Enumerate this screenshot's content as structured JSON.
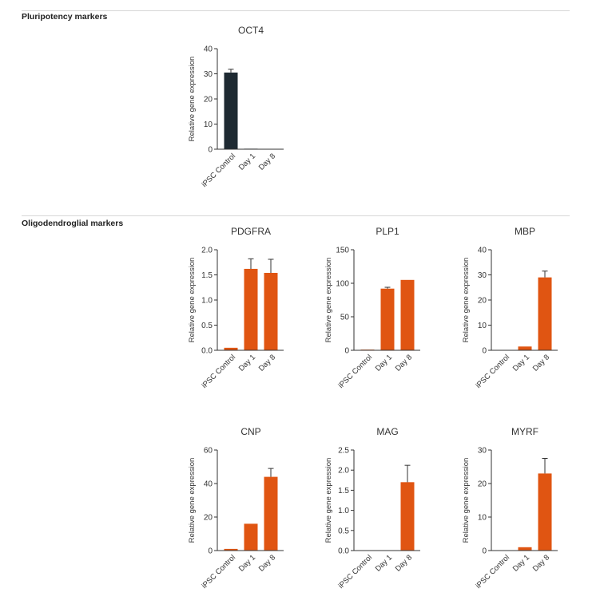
{
  "sections": {
    "pluripotency": {
      "label": "Pluripotency markers"
    },
    "oligodendroglial": {
      "label": "Oligodendroglial markers"
    }
  },
  "colors": {
    "pluripotency_bar": "#1e2a32",
    "oligo_bar": "#e05512",
    "axis": "#333333"
  },
  "chart_data": [
    {
      "id": "oct4",
      "type": "bar",
      "title": "OCT4",
      "ylabel": "Relative gene expression",
      "categories": [
        "iPSC Control",
        "Day 1",
        "Day 8"
      ],
      "values": [
        30.5,
        0.2,
        0.1
      ],
      "errors": [
        1.3,
        0,
        0
      ],
      "ylim": [
        0,
        40
      ],
      "yticks": [
        "0",
        "10",
        "20",
        "30",
        "40"
      ],
      "color": "#1e2a32"
    },
    {
      "id": "pdgfra",
      "type": "bar",
      "title": "PDGFRA",
      "ylabel": "Relative gene expression",
      "categories": [
        "iPSC Control",
        "Day 1",
        "Day 8"
      ],
      "values": [
        0.05,
        1.62,
        1.54
      ],
      "errors": [
        0,
        0.2,
        0.27
      ],
      "ylim": [
        0,
        2.0
      ],
      "yticks": [
        "0.0",
        "0.5",
        "1.0",
        "1.5",
        "2.0"
      ],
      "color": "#e05512"
    },
    {
      "id": "plp1",
      "type": "bar",
      "title": "PLP1",
      "ylabel": "Relative gene expression",
      "categories": [
        "iPSC Control",
        "Day 1",
        "Day 8"
      ],
      "values": [
        1,
        92,
        105
      ],
      "errors": [
        0,
        2,
        0
      ],
      "ylim": [
        0,
        150
      ],
      "yticks": [
        "0",
        "50",
        "100",
        "150"
      ],
      "color": "#e05512"
    },
    {
      "id": "mbp",
      "type": "bar",
      "title": "MBP",
      "ylabel": "Relative gene expression",
      "categories": [
        "iPSC Control",
        "Day 1",
        "Day 8"
      ],
      "values": [
        0.1,
        1.5,
        29
      ],
      "errors": [
        0,
        0,
        2.5
      ],
      "ylim": [
        0,
        40
      ],
      "yticks": [
        "0",
        "10",
        "20",
        "30",
        "40"
      ],
      "color": "#e05512"
    },
    {
      "id": "cnp",
      "type": "bar",
      "title": "CNP",
      "ylabel": "Relative gene expression",
      "categories": [
        "iPSC Control",
        "Day 1",
        "Day 8"
      ],
      "values": [
        1,
        16,
        44
      ],
      "errors": [
        0,
        0,
        5
      ],
      "ylim": [
        0,
        60
      ],
      "yticks": [
        "0",
        "20",
        "40",
        "60"
      ],
      "color": "#e05512"
    },
    {
      "id": "mag",
      "type": "bar",
      "title": "MAG",
      "ylabel": "Relative gene expression",
      "categories": [
        "iPSC Control",
        "Day 1",
        "Day 8"
      ],
      "values": [
        0.005,
        0,
        1.7
      ],
      "errors": [
        0,
        0,
        0.42
      ],
      "ylim": [
        0,
        2.5
      ],
      "yticks": [
        "0.0",
        "0.5",
        "1.0",
        "1.5",
        "2.0",
        "2.5"
      ],
      "color": "#e05512"
    },
    {
      "id": "myrf",
      "type": "bar",
      "title": "MYRF",
      "ylabel": "Relative gene expression",
      "categories": [
        "iPSC Control",
        "Day 1",
        "Day 8"
      ],
      "values": [
        0.1,
        1,
        23
      ],
      "errors": [
        0,
        0,
        4.5
      ],
      "ylim": [
        0,
        30
      ],
      "yticks": [
        "0",
        "10",
        "20",
        "30"
      ],
      "color": "#e05512"
    }
  ]
}
